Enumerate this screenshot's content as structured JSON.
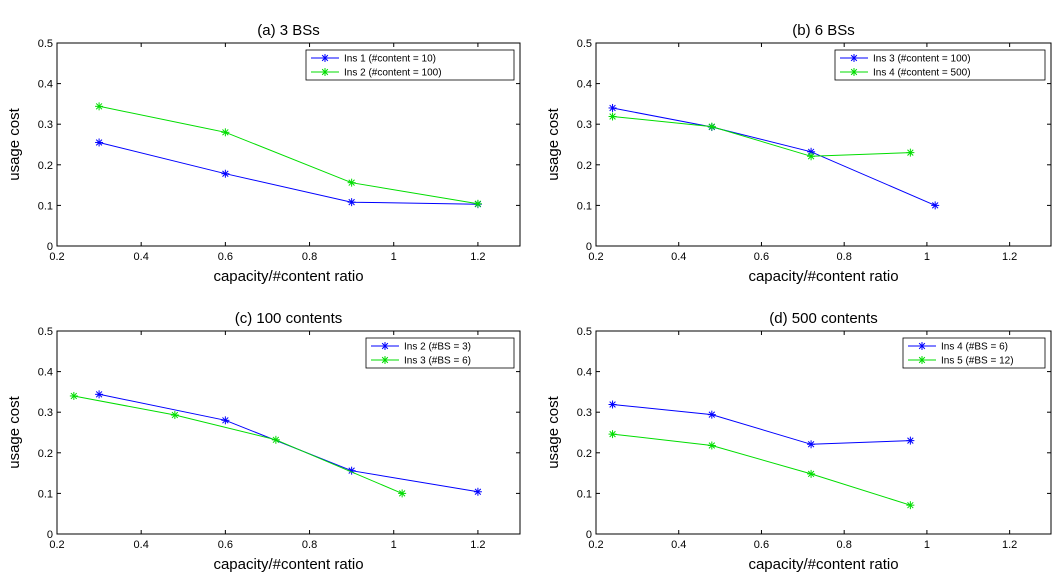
{
  "chart_data": [
    {
      "type": "line",
      "title": "(a) 3 BSs",
      "xlabel": "capacity/#content ratio",
      "ylabel": "usage cost",
      "xlim": [
        0.2,
        1.3
      ],
      "ylim": [
        0,
        0.5
      ],
      "xticks": [
        "0.2",
        "0.4",
        "0.6",
        "0.8",
        "1",
        "1.2"
      ],
      "yticks": [
        "0",
        "0.1",
        "0.2",
        "0.3",
        "0.4",
        "0.5"
      ],
      "legend_position": "top-right",
      "series": [
        {
          "name": "Ins 1 (#content = 10)",
          "color": "#0000ff",
          "x": [
            0.3,
            0.6,
            0.9,
            1.2
          ],
          "y": [
            0.255,
            0.178,
            0.108,
            0.103
          ]
        },
        {
          "name": "Ins 2 (#content = 100)",
          "color": "#00dd00",
          "x": [
            0.3,
            0.6,
            0.9,
            1.2
          ],
          "y": [
            0.344,
            0.28,
            0.156,
            0.104
          ]
        }
      ]
    },
    {
      "type": "line",
      "title": "(b) 6 BSs",
      "xlabel": "capacity/#content ratio",
      "ylabel": "usage cost",
      "xlim": [
        0.2,
        1.3
      ],
      "ylim": [
        0,
        0.5
      ],
      "xticks": [
        "0.2",
        "0.4",
        "0.6",
        "0.8",
        "1",
        "1.2"
      ],
      "yticks": [
        "0",
        "0.1",
        "0.2",
        "0.3",
        "0.4",
        "0.5"
      ],
      "legend_position": "top-right",
      "series": [
        {
          "name": "Ins 3 (#content = 100)",
          "color": "#0000ff",
          "x": [
            0.24,
            0.48,
            0.72,
            1.02
          ],
          "y": [
            0.34,
            0.293,
            0.232,
            0.1
          ]
        },
        {
          "name": "Ins 4 (#content = 500)",
          "color": "#00dd00",
          "x": [
            0.24,
            0.48,
            0.72,
            0.96
          ],
          "y": [
            0.319,
            0.294,
            0.221,
            0.23
          ]
        }
      ]
    },
    {
      "type": "line",
      "title": "(c) 100 contents",
      "xlabel": "capacity/#content ratio",
      "ylabel": "usage cost",
      "xlim": [
        0.2,
        1.3
      ],
      "ylim": [
        0,
        0.5
      ],
      "xticks": [
        "0.2",
        "0.4",
        "0.6",
        "0.8",
        "1",
        "1.2"
      ],
      "yticks": [
        "0",
        "0.1",
        "0.2",
        "0.3",
        "0.4",
        "0.5"
      ],
      "legend_position": "top-right",
      "series": [
        {
          "name": "Ins 2 (#BS = 3)",
          "color": "#0000ff",
          "x": [
            0.3,
            0.6,
            0.9,
            1.2
          ],
          "y": [
            0.344,
            0.28,
            0.156,
            0.104
          ]
        },
        {
          "name": "Ins 3 (#BS = 6)",
          "color": "#00dd00",
          "x": [
            0.24,
            0.48,
            0.72,
            1.02
          ],
          "y": [
            0.34,
            0.293,
            0.232,
            0.1
          ]
        }
      ]
    },
    {
      "type": "line",
      "title": "(d) 500 contents",
      "xlabel": "capacity/#content ratio",
      "ylabel": "usage cost",
      "xlim": [
        0.2,
        1.3
      ],
      "ylim": [
        0,
        0.5
      ],
      "xticks": [
        "0.2",
        "0.4",
        "0.6",
        "0.8",
        "1",
        "1.2"
      ],
      "yticks": [
        "0",
        "0.1",
        "0.2",
        "0.3",
        "0.4",
        "0.5"
      ],
      "legend_position": "top-right",
      "series": [
        {
          "name": "Ins 4 (#BS = 6)",
          "color": "#0000ff",
          "x": [
            0.24,
            0.48,
            0.72,
            0.96
          ],
          "y": [
            0.319,
            0.294,
            0.221,
            0.23
          ]
        },
        {
          "name": "Ins 5 (#BS = 12)",
          "color": "#00dd00",
          "x": [
            0.24,
            0.48,
            0.72,
            0.96
          ],
          "y": [
            0.246,
            0.218,
            0.148,
            0.071
          ]
        }
      ]
    }
  ]
}
